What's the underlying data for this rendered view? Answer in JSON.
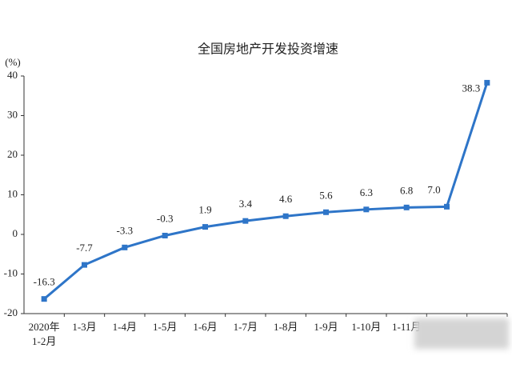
{
  "chart_data": {
    "type": "line",
    "title": "全国房地产开发投资增速",
    "y_unit": "(%)",
    "categories": [
      "2020年\n1-2月",
      "1-3月",
      "1-4月",
      "1-5月",
      "1-6月",
      "1-7月",
      "1-8月",
      "1-9月",
      "1-10月",
      "1-11月",
      null,
      null
    ],
    "values": [
      -16.3,
      -7.7,
      -3.3,
      -0.3,
      1.9,
      3.4,
      4.6,
      5.6,
      6.3,
      6.8,
      7.0,
      38.3
    ],
    "value_labels": [
      "-16.3",
      "-7.7",
      "-3.3",
      "-0.3",
      "1.9",
      "3.4",
      "4.6",
      "5.6",
      "6.3",
      "6.8",
      "7.0",
      "38.3"
    ],
    "color": "#2e75c8",
    "ylim": [
      -20,
      40
    ],
    "yticks": [
      -20,
      -10,
      0,
      10,
      20,
      30,
      40
    ]
  }
}
